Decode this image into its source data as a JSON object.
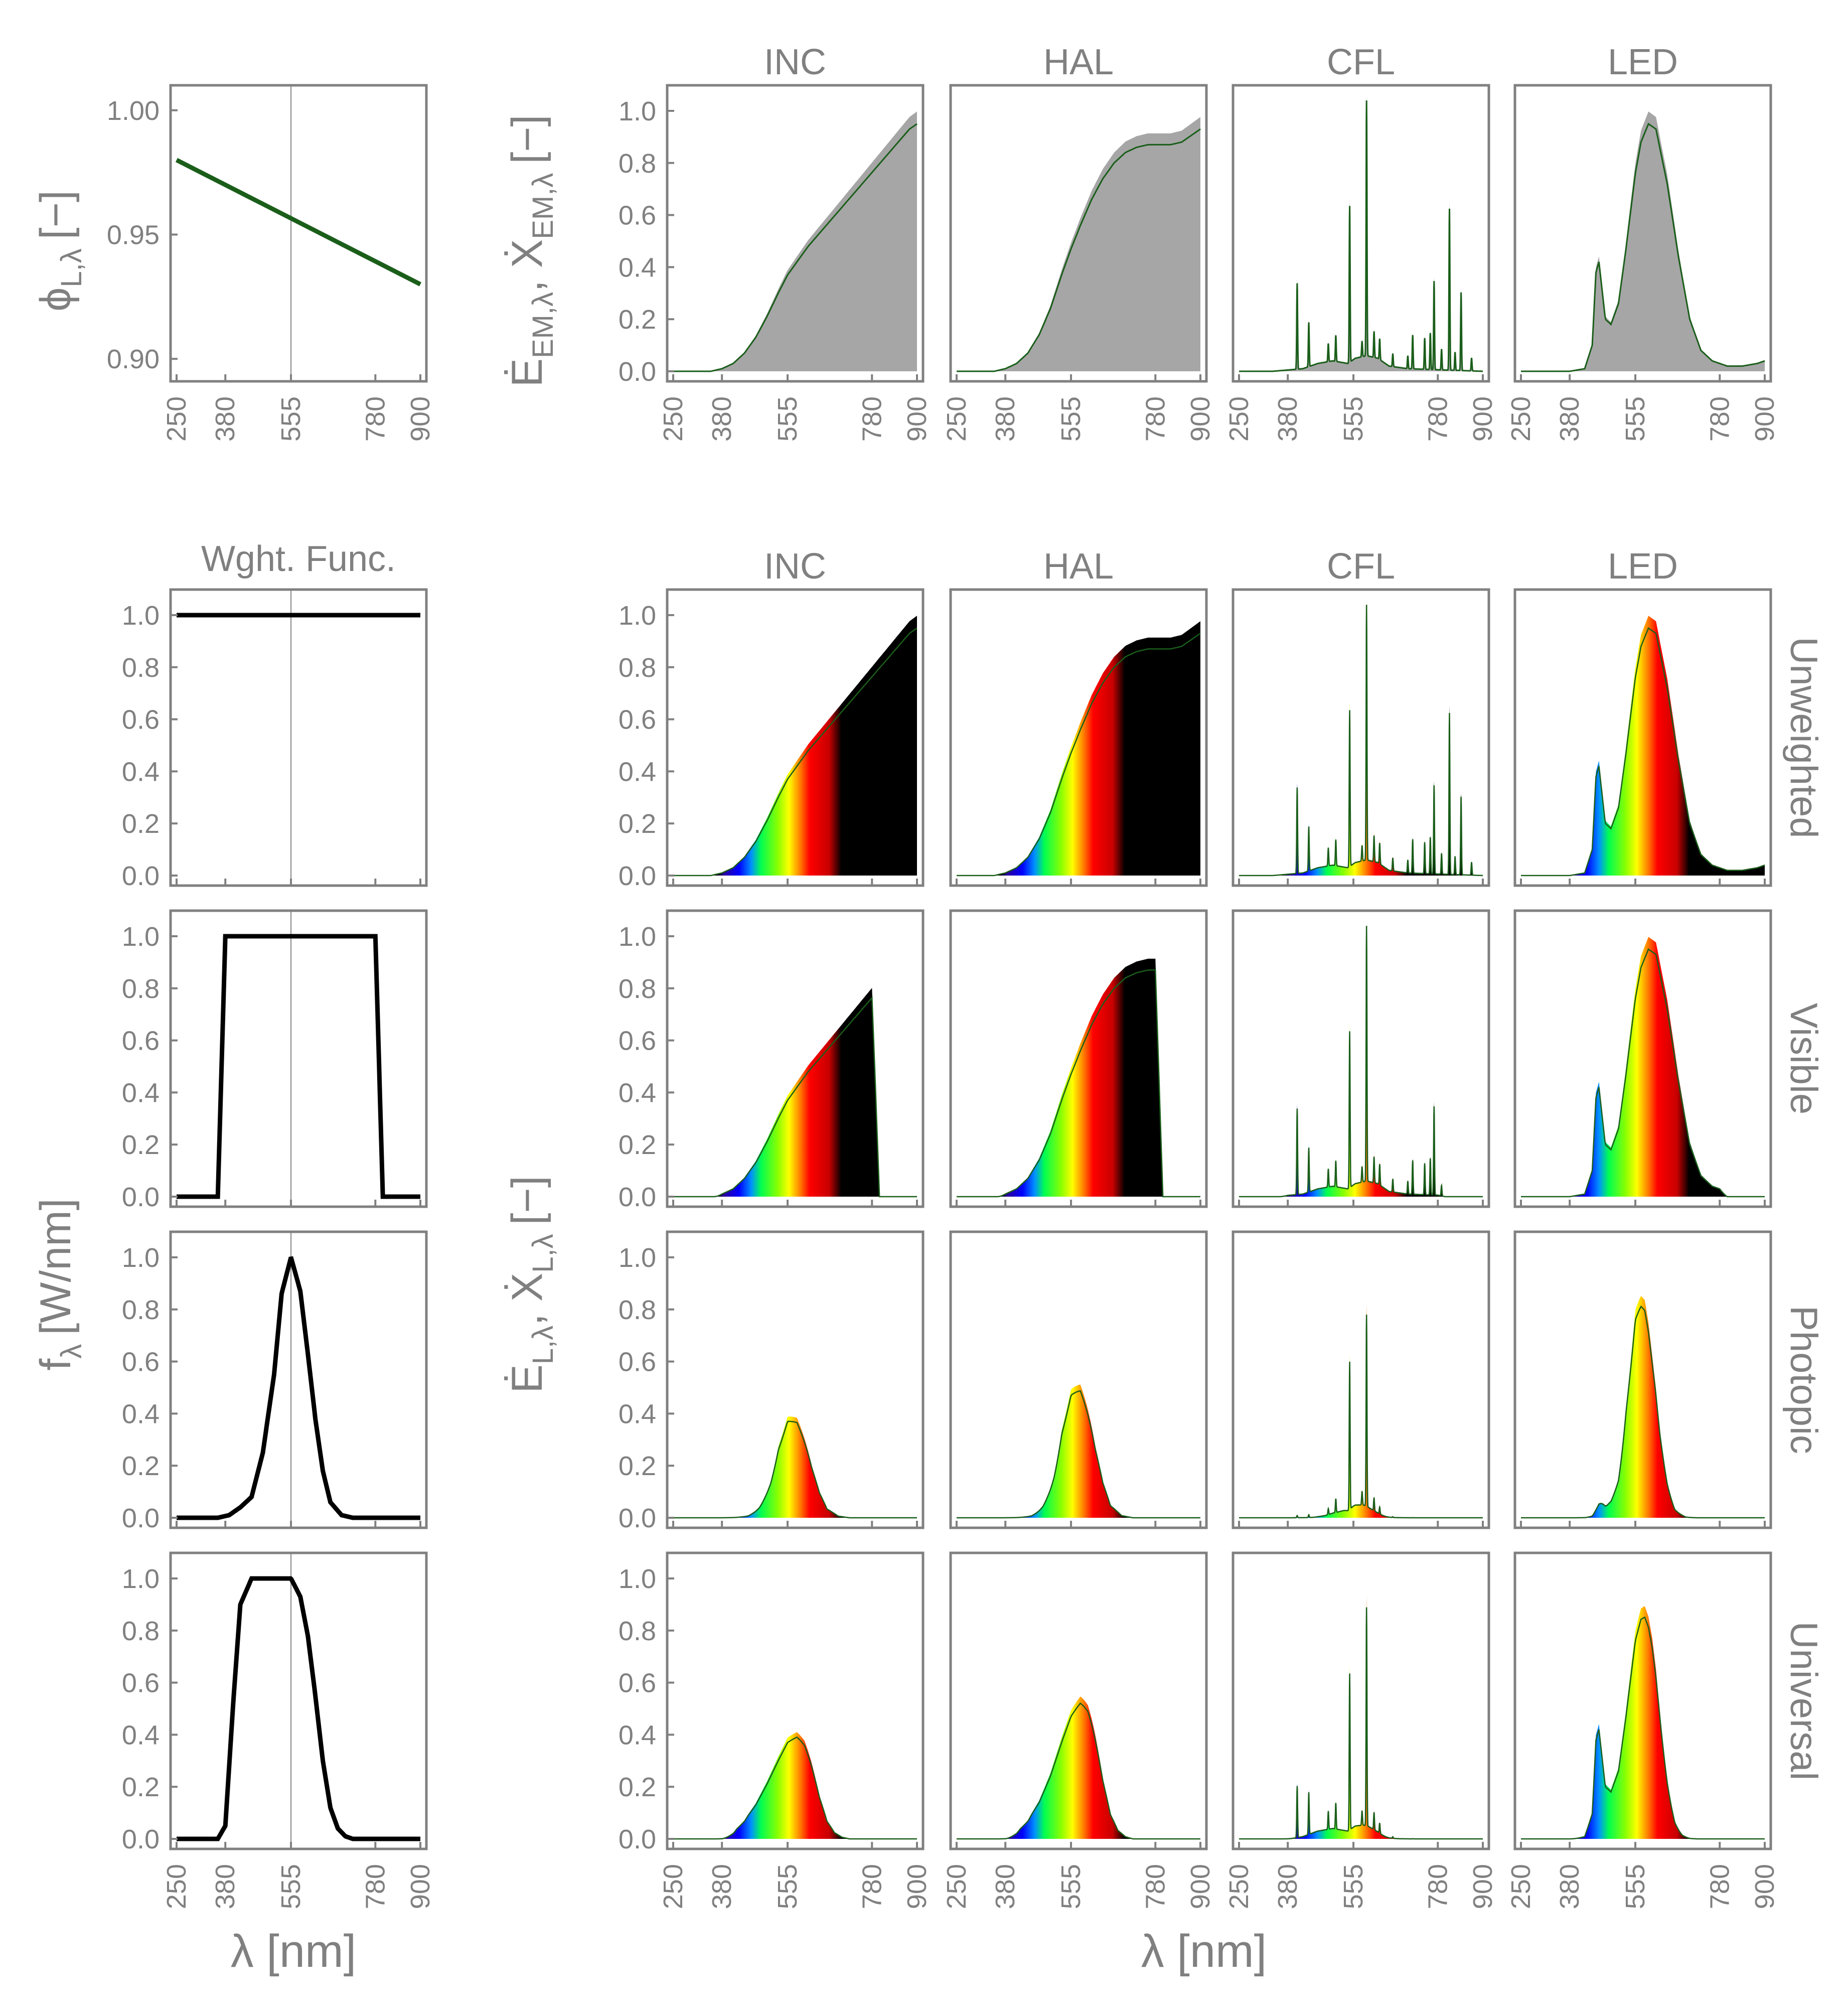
{
  "figure": {
    "phi_panel": {
      "ylabel": "ϕ",
      "ylabel_sub": "L,λ",
      "ylabel_unit": "[−]",
      "yticks": [
        "0.90",
        "0.95",
        "1.00"
      ]
    },
    "top_ylabel": {
      "main": "Ė",
      "sub1": "EM,λ",
      "mid": ", Ẋ",
      "sub2": "EM,λ",
      "unit": "[−]"
    },
    "bottom_ylabel": {
      "main": "Ė",
      "sub1": "L,λ",
      "mid": ", Ẋ",
      "sub2": "L,λ",
      "unit": "[−]"
    },
    "left_ylabel": {
      "main": "f",
      "sub": "λ",
      "unit": "[W/nm]"
    },
    "xlabel": "λ [nm]",
    "weight_title": "Wght. Func.",
    "column_titles": [
      "INC",
      "HAL",
      "CFL",
      "LED"
    ],
    "row_labels": [
      "Unweighted",
      "Visible",
      "Photopic",
      "Universal"
    ],
    "xticks": [
      "250",
      "380",
      "555",
      "780",
      "900"
    ],
    "yticks": [
      "0.0",
      "0.2",
      "0.4",
      "0.6",
      "0.8",
      "1.0"
    ]
  },
  "chart_data": {
    "type": "area",
    "x_unit": "nm",
    "xlim": [
      250,
      900
    ],
    "ylim": [
      0,
      1.05
    ],
    "phi_line": {
      "x": [
        250,
        900
      ],
      "y": [
        0.98,
        0.93
      ],
      "ylim": [
        0.895,
        1.005
      ],
      "color": "#1a5e1a"
    },
    "weighting_functions": {
      "Unweighted": {
        "x": [
          250,
          900
        ],
        "y": [
          1.0,
          1.0
        ]
      },
      "Visible": {
        "x": [
          250,
          360,
          380,
          780,
          800,
          900
        ],
        "y": [
          0,
          0,
          1,
          1,
          0,
          0
        ]
      },
      "Photopic": {
        "x": [
          250,
          360,
          390,
          420,
          450,
          480,
          510,
          530,
          555,
          580,
          600,
          620,
          640,
          660,
          690,
          720,
          900
        ],
        "y": [
          0,
          0,
          0.01,
          0.04,
          0.08,
          0.25,
          0.55,
          0.86,
          1.0,
          0.87,
          0.63,
          0.38,
          0.18,
          0.06,
          0.01,
          0,
          0
        ]
      },
      "Universal": {
        "x": [
          250,
          360,
          380,
          400,
          420,
          450,
          480,
          520,
          555,
          580,
          600,
          620,
          640,
          660,
          680,
          700,
          720,
          900
        ],
        "y": [
          0,
          0,
          0.05,
          0.5,
          0.9,
          1.0,
          1.0,
          1.0,
          1.0,
          0.93,
          0.78,
          0.55,
          0.3,
          0.12,
          0.04,
          0.01,
          0,
          0
        ]
      }
    },
    "emission_spectra": {
      "INC": {
        "x": [
          250,
          350,
          380,
          410,
          440,
          470,
          500,
          530,
          555,
          580,
          610,
          640,
          670,
          700,
          730,
          760,
          790,
          820,
          850,
          880,
          900
        ],
        "y": [
          0,
          0,
          0.01,
          0.03,
          0.07,
          0.13,
          0.21,
          0.3,
          0.37,
          0.42,
          0.48,
          0.53,
          0.58,
          0.63,
          0.68,
          0.73,
          0.78,
          0.83,
          0.88,
          0.93,
          0.95
        ]
      },
      "HAL": {
        "x": [
          250,
          350,
          380,
          410,
          440,
          470,
          500,
          530,
          555,
          580,
          610,
          640,
          670,
          700,
          730,
          760,
          790,
          820,
          850,
          880,
          900
        ],
        "y": [
          0,
          0,
          0.01,
          0.03,
          0.07,
          0.14,
          0.24,
          0.37,
          0.47,
          0.56,
          0.66,
          0.74,
          0.8,
          0.84,
          0.86,
          0.87,
          0.87,
          0.87,
          0.88,
          0.91,
          0.93
        ]
      },
      "CFL": {
        "baseline": {
          "x": [
            250,
            340,
            380,
            420,
            460,
            500,
            540,
            560,
            590,
            620,
            650,
            700,
            900
          ],
          "y": [
            0,
            0,
            0.005,
            0.01,
            0.03,
            0.04,
            0.03,
            0.05,
            0.06,
            0.05,
            0.02,
            0.01,
            0
          ]
        },
        "peaks": [
          [
            405,
            0.33
          ],
          [
            436,
            0.17
          ],
          [
            488,
            0.07
          ],
          [
            508,
            0.1
          ],
          [
            545,
            0.6
          ],
          [
            578,
            0.06
          ],
          [
            590,
            0.98
          ],
          [
            610,
            0.1
          ],
          [
            625,
            0.08
          ],
          [
            660,
            0.05
          ],
          [
            700,
            0.05
          ],
          [
            713,
            0.13
          ],
          [
            745,
            0.12
          ],
          [
            760,
            0.14
          ],
          [
            770,
            0.34
          ],
          [
            790,
            0.08
          ],
          [
            811,
            0.62
          ],
          [
            826,
            0.07
          ],
          [
            842,
            0.3
          ],
          [
            870,
            0.05
          ]
        ]
      },
      "LED": {
        "x": [
          250,
          380,
          420,
          440,
          450,
          458,
          465,
          475,
          490,
          510,
          530,
          555,
          570,
          590,
          610,
          640,
          670,
          700,
          730,
          760,
          800,
          840,
          880,
          900
        ],
        "y": [
          0,
          0,
          0.01,
          0.1,
          0.38,
          0.42,
          0.33,
          0.2,
          0.18,
          0.26,
          0.47,
          0.76,
          0.88,
          0.95,
          0.93,
          0.72,
          0.44,
          0.2,
          0.08,
          0.04,
          0.02,
          0.02,
          0.03,
          0.04
        ]
      }
    }
  }
}
